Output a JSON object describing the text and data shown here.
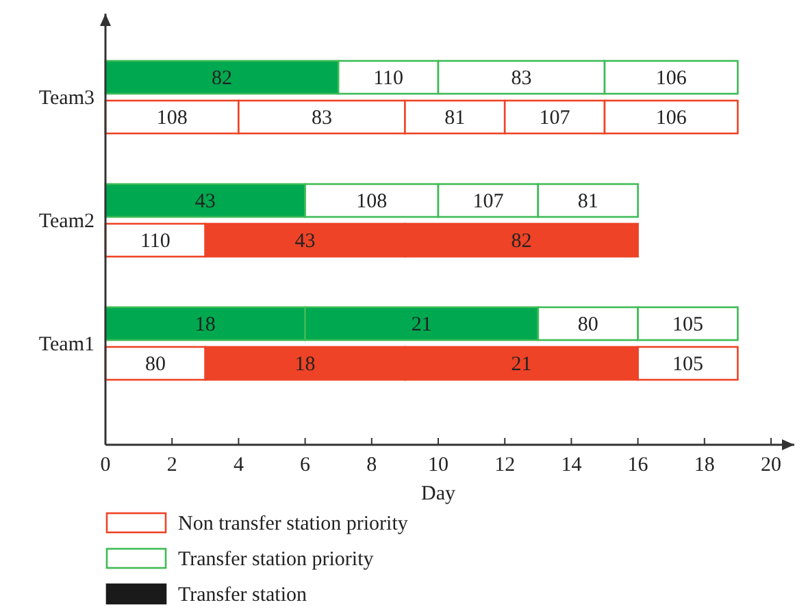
{
  "chart_data": {
    "type": "bar",
    "orientation": "horizontal",
    "xlabel": "Day",
    "categories": [
      "Team3",
      "Team2",
      "Team1"
    ],
    "xlim": [
      0,
      20.7
    ],
    "xticks": [
      0,
      2,
      4,
      6,
      8,
      10,
      12,
      14,
      16,
      18,
      20
    ],
    "legend": "bottom left",
    "grid": false,
    "series": [
      {
        "name": "108",
        "color": "#ee4326",
        "base": [
          0,
          null,
          null
        ],
        "values": [
          4,
          null,
          null
        ],
        "colors": [
          "#ffffff",
          null,
          null
        ]
      },
      {
        "name": "83",
        "color": "#ee4326",
        "base": [
          4,
          null,
          null
        ],
        "values": [
          5,
          null,
          null
        ],
        "colors": [
          "#ffffff",
          null,
          null
        ]
      },
      {
        "name": "81",
        "color": "#ee4326",
        "base": [
          9,
          null,
          null
        ],
        "values": [
          3,
          null,
          null
        ],
        "colors": [
          "#ffffff",
          null,
          null
        ]
      },
      {
        "name": "107",
        "color": "#ee4326",
        "base": [
          12,
          null,
          null
        ],
        "values": [
          3,
          null,
          null
        ],
        "colors": [
          "#ffffff",
          null,
          null
        ]
      },
      {
        "name": "106",
        "color": "#ee4326",
        "base": [
          15,
          null,
          null
        ],
        "values": [
          4,
          null,
          null
        ],
        "colors": [
          "#ffffff",
          null,
          null
        ]
      },
      {
        "name": "110",
        "color": "#ee4326",
        "base": [
          null,
          0,
          null
        ],
        "values": [
          null,
          3,
          null
        ],
        "colors": [
          null,
          "#ffffff",
          null
        ]
      },
      {
        "name": "43",
        "color": "#ee4326",
        "base": [
          null,
          3,
          null
        ],
        "values": [
          null,
          6,
          null
        ],
        "colors": [
          null,
          "#ee4326",
          null
        ]
      },
      {
        "name": "82",
        "color": "#ee4326",
        "base": [
          null,
          9,
          null
        ],
        "values": [
          null,
          7,
          null
        ],
        "colors": [
          null,
          "#ee4326",
          null
        ]
      },
      {
        "name": "80",
        "color": "#ee4326",
        "base": [
          null,
          null,
          0
        ],
        "values": [
          null,
          null,
          3
        ],
        "colors": [
          null,
          null,
          "#ffffff"
        ]
      },
      {
        "name": "18",
        "color": "#ee4326",
        "base": [
          null,
          null,
          3
        ],
        "values": [
          null,
          null,
          6
        ],
        "colors": [
          null,
          null,
          "#ee4326"
        ]
      },
      {
        "name": "21",
        "color": "#ee4326",
        "base": [
          null,
          null,
          9
        ],
        "values": [
          null,
          null,
          7
        ],
        "colors": [
          null,
          null,
          "#ee4326"
        ]
      },
      {
        "name": "105",
        "color": "#ee4326",
        "base": [
          null,
          null,
          16
        ],
        "values": [
          null,
          null,
          3
        ],
        "colors": [
          null,
          null,
          "#ffffff"
        ]
      },
      {
        "name": "82",
        "color": "#3dbb55",
        "base": [
          0,
          null,
          null
        ],
        "values": [
          7,
          null,
          null
        ],
        "colors": [
          "#00a84f",
          null,
          null
        ]
      },
      {
        "name": "110",
        "color": "#3dbb55",
        "base": [
          7,
          null,
          null
        ],
        "values": [
          3,
          null,
          null
        ],
        "colors": [
          "#ffffff",
          null,
          null
        ]
      },
      {
        "name": "83",
        "color": "#3dbb55",
        "base": [
          10,
          null,
          null
        ],
        "values": [
          5,
          null,
          null
        ],
        "colors": [
          "#ffffff",
          null,
          null
        ]
      },
      {
        "name": "106",
        "color": "#3dbb55",
        "base": [
          15,
          null,
          null
        ],
        "values": [
          4,
          null,
          null
        ],
        "colors": [
          "#ffffff",
          null,
          null
        ]
      },
      {
        "name": "43",
        "color": "#3dbb55",
        "base": [
          null,
          0,
          null
        ],
        "values": [
          null,
          6,
          null
        ],
        "colors": [
          null,
          "#00a84f",
          null
        ]
      },
      {
        "name": "108",
        "color": "#3dbb55",
        "base": [
          null,
          6,
          null
        ],
        "values": [
          null,
          4,
          null
        ],
        "colors": [
          null,
          "#ffffff",
          null
        ]
      },
      {
        "name": "107",
        "color": "#3dbb55",
        "base": [
          null,
          10,
          null
        ],
        "values": [
          null,
          3,
          null
        ],
        "colors": [
          null,
          "#ffffff",
          null
        ]
      },
      {
        "name": "81",
        "color": "#3dbb55",
        "base": [
          null,
          13,
          null
        ],
        "values": [
          null,
          3,
          null
        ],
        "colors": [
          null,
          "#ffffff",
          null
        ]
      },
      {
        "name": "18",
        "color": "#3dbb55",
        "base": [
          null,
          null,
          0
        ],
        "values": [
          null,
          null,
          6
        ],
        "colors": [
          null,
          null,
          "#00a84f"
        ]
      },
      {
        "name": "21",
        "color": "#3dbb55",
        "base": [
          null,
          null,
          6
        ],
        "values": [
          null,
          null,
          7
        ],
        "colors": [
          null,
          null,
          "#00a84f"
        ]
      },
      {
        "name": "80",
        "color": "#3dbb55",
        "base": [
          null,
          null,
          13
        ],
        "values": [
          null,
          null,
          3
        ],
        "colors": [
          null,
          null,
          "#ffffff"
        ]
      },
      {
        "name": "105",
        "color": "#3dbb55",
        "base": [
          null,
          null,
          16
        ],
        "values": [
          null,
          null,
          3
        ],
        "colors": [
          null,
          null,
          "#ffffff"
        ]
      },
      {
        "name": "Non transfer station priority",
        "color": "#ee4326",
        "values": [
          null,
          null,
          null
        ]
      },
      {
        "name": "Transfer station priority",
        "color": "#3dbb55",
        "values": [
          null,
          null,
          null
        ]
      },
      {
        "name": "Transfer station",
        "color": "#1a1a1a",
        "values": [
          null,
          null,
          null
        ]
      }
    ]
  }
}
